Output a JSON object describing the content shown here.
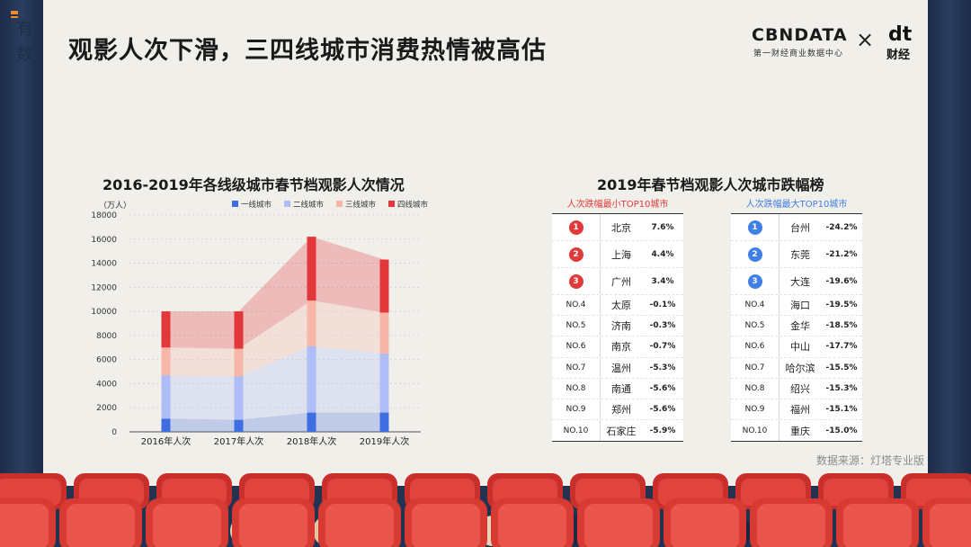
{
  "logo_chars": [
    "有",
    "数"
  ],
  "page_title": "观影人次下滑，三四线城市消费热情被高估",
  "brand": {
    "name": "CBNDATA",
    "subtitle": "第一财经商业数据中心",
    "times": "×",
    "partner_mark": "dt",
    "partner_name": "财经"
  },
  "left_title": "2016-2019年各线级城市春节档观影人次情况",
  "right_title": "2019年春节档观影人次城市跌幅榜",
  "colors": {
    "tier1": "#3d6fe0",
    "tier2": "#aebdf7",
    "tier3": "#f6b7a8",
    "tier4": "#e2373b",
    "red": "#e23a3a",
    "blue": "#3f7fe6"
  },
  "chart_data": {
    "type": "bar",
    "stacked": true,
    "unit_label": "（万人）",
    "categories": [
      "2016年人次",
      "2017年人次",
      "2018年人次",
      "2019年人次"
    ],
    "ylim": [
      0,
      18000
    ],
    "yticks": [
      0,
      2000,
      4000,
      6000,
      8000,
      10000,
      12000,
      14000,
      16000,
      18000
    ],
    "legend_position": "top-right",
    "series": [
      {
        "name": "一线城市",
        "values": [
          1100,
          1000,
          1600,
          1600
        ]
      },
      {
        "name": "二线城市",
        "values": [
          3600,
          3600,
          5500,
          4900
        ]
      },
      {
        "name": "三线城市",
        "values": [
          2300,
          2300,
          3800,
          3400
        ]
      },
      {
        "name": "四线城市",
        "values": [
          3000,
          3100,
          5300,
          4400
        ]
      }
    ]
  },
  "smallest_drop": {
    "header": "人次跌幅最小TOP10城市",
    "rows": [
      {
        "rank": "1",
        "city": "北京",
        "value": "7.6%"
      },
      {
        "rank": "2",
        "city": "上海",
        "value": "4.4%"
      },
      {
        "rank": "3",
        "city": "广州",
        "value": "3.4%"
      },
      {
        "rank": "NO.4",
        "city": "太原",
        "value": "-0.1%"
      },
      {
        "rank": "NO.5",
        "city": "济南",
        "value": "-0.3%"
      },
      {
        "rank": "NO.6",
        "city": "南京",
        "value": "-0.7%"
      },
      {
        "rank": "NO.7",
        "city": "温州",
        "value": "-5.3%"
      },
      {
        "rank": "NO.8",
        "city": "南通",
        "value": "-5.6%"
      },
      {
        "rank": "NO.9",
        "city": "郑州",
        "value": "-5.6%"
      },
      {
        "rank": "NO.10",
        "city": "石家庄",
        "value": "-5.9%"
      }
    ]
  },
  "largest_drop": {
    "header": "人次跌幅最大TOP10城市",
    "rows": [
      {
        "rank": "1",
        "city": "台州",
        "value": "-24.2%"
      },
      {
        "rank": "2",
        "city": "东莞",
        "value": "-21.2%"
      },
      {
        "rank": "3",
        "city": "大连",
        "value": "-19.6%"
      },
      {
        "rank": "NO.4",
        "city": "海口",
        "value": "-19.5%"
      },
      {
        "rank": "NO.5",
        "city": "金华",
        "value": "-18.5%"
      },
      {
        "rank": "NO.6",
        "city": "中山",
        "value": "-17.7%"
      },
      {
        "rank": "NO.7",
        "city": "哈尔滨",
        "value": "-15.5%"
      },
      {
        "rank": "NO.8",
        "city": "绍兴",
        "value": "-15.3%"
      },
      {
        "rank": "NO.9",
        "city": "福州",
        "value": "-15.1%"
      },
      {
        "rank": "NO.10",
        "city": "重庆",
        "value": "-15.0%"
      }
    ]
  },
  "source": "数据来源：灯塔专业版"
}
